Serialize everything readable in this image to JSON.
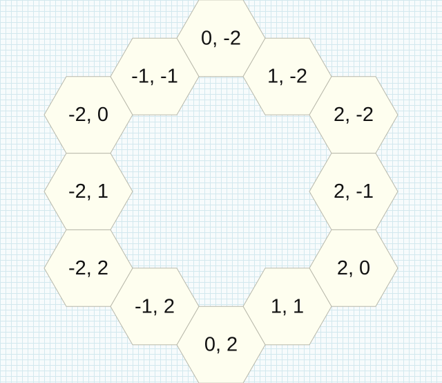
{
  "hexes": [
    {
      "q": 0,
      "r": -2,
      "label": "0, -2"
    },
    {
      "q": 1,
      "r": -2,
      "label": "1, -2"
    },
    {
      "q": 2,
      "r": -2,
      "label": "2, -2"
    },
    {
      "q": 2,
      "r": -1,
      "label": "2, -1"
    },
    {
      "q": 2,
      "r": 0,
      "label": "2, 0"
    },
    {
      "q": 1,
      "r": 1,
      "label": "1, 1"
    },
    {
      "q": 0,
      "r": 2,
      "label": "0, 2"
    },
    {
      "q": -1,
      "r": 2,
      "label": "-1, 2"
    },
    {
      "q": -2,
      "r": 2,
      "label": "-2, 2"
    },
    {
      "q": -2,
      "r": 1,
      "label": "-2, 1"
    },
    {
      "q": -2,
      "r": 0,
      "label": "-2, 0"
    },
    {
      "q": -1,
      "r": -1,
      "label": "-1, -1"
    }
  ],
  "colors": {
    "hex_fill": "#fefeef",
    "hex_stroke": "#b8b8aa",
    "grid_line": "#d2e8ee",
    "background": "#f7fbfc"
  }
}
